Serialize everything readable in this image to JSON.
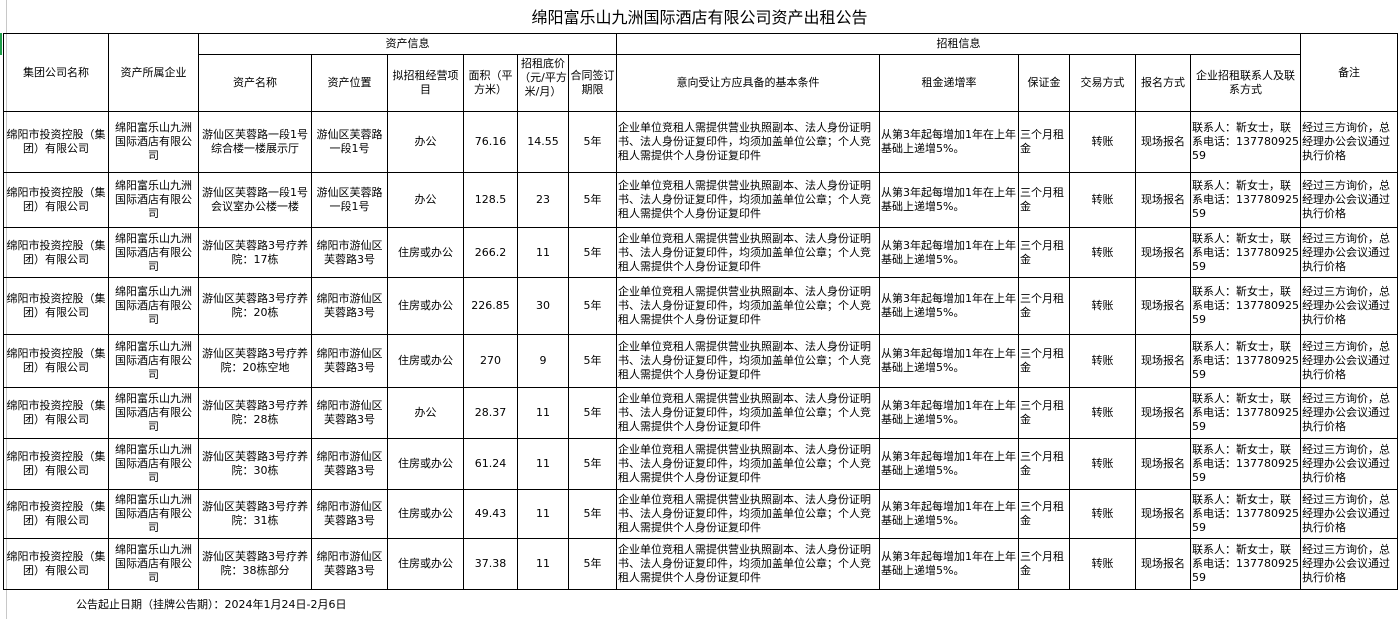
{
  "title": "绵阳富乐山九洲国际酒店有限公司资产出租公告",
  "headers": {
    "group_company": "集团公司名称",
    "owner": "资产所属企业",
    "asset_info": "资产信息",
    "lease_info": "招租信息",
    "remark": "备注",
    "asset_name": "资产名称",
    "asset_location": "资产位置",
    "business": "拟招租经营项目",
    "area": "面积（平方米）",
    "base_price": "招租底价（元/平方米/月）",
    "term": "合同签订期限",
    "conditions": "意向受让方应具备的基本条件",
    "increase": "租金递增率",
    "deposit": "保证金",
    "trade": "交易方式",
    "signup": "报名方式",
    "contact": "企业招租联系人及联系方式"
  },
  "rows": [
    {
      "group": "绵阳市投资控股（集团）有限公司",
      "owner": "绵阳富乐山九洲国际酒店有限公司",
      "name": "游仙区芙蓉路一段1号综合楼一楼展示厅",
      "location": "游仙区芙蓉路一段1号",
      "business": "办公",
      "area": "76.16",
      "price": "14.55",
      "term": "5年",
      "conditions": "企业单位竞租人需提供营业执照副本、法人身份证明书、法人身份证复印件，均须加盖单位公章；个人竞租人需提供个人身份证复印件",
      "increase": "从第3年起每增加1年在上年基础上递增5%。",
      "deposit": "三个月租金",
      "trade": "转账",
      "signup": "现场报名",
      "contact": "联系人：靳女士，联系电话：13778092559",
      "remark": "经过三方询价，总经理办公会议通过执行价格"
    },
    {
      "group": "绵阳市投资控股（集团）有限公司",
      "owner": "绵阳富乐山九洲国际酒店有限公司",
      "name": "游仙区芙蓉路一段1号会议室办公楼一楼",
      "location": "游仙区芙蓉路一段1号",
      "business": "办公",
      "area": "128.5",
      "price": "23",
      "term": "5年",
      "conditions": "企业单位竞租人需提供营业执照副本、法人身份证明书、法人身份证复印件，均须加盖单位公章；个人竞租人需提供个人身份证复印件",
      "increase": "从第3年起每增加1年在上年基础上递增5%。",
      "deposit": "三个月租金",
      "trade": "转账",
      "signup": "现场报名",
      "contact": "联系人：靳女士，联系电话：13778092559",
      "remark": "经过三方询价，总经理办公会议通过执行价格"
    },
    {
      "group": "绵阳市投资控股（集团）有限公司",
      "owner": "绵阳富乐山九洲国际酒店有限公司",
      "name": "游仙区芙蓉路3号疗养院：17栋",
      "location": "绵阳市游仙区芙蓉路3号",
      "business": "住房或办公",
      "area": "266.2",
      "price": "11",
      "term": "5年",
      "conditions": "企业单位竞租人需提供营业执照副本、法人身份证明书、法人身份证复印件，均须加盖单位公章；个人竞租人需提供个人身份证复印件",
      "increase": "从第3年起每增加1年在上年基础上递增5%。",
      "deposit": "三个月租金",
      "trade": "转账",
      "signup": "现场报名",
      "contact": "联系人：靳女士，联系电话：13778092559",
      "remark": "经过三方询价，总经理办公会议通过执行价格"
    },
    {
      "group": "绵阳市投资控股（集团）有限公司",
      "owner": "绵阳富乐山九洲国际酒店有限公司",
      "name": "游仙区芙蓉路3号疗养院：20栋",
      "location": "绵阳市游仙区芙蓉路3号",
      "business": "住房或办公",
      "area": "226.85",
      "price": "30",
      "term": "5年",
      "conditions": "企业单位竞租人需提供营业执照副本、法人身份证明书、法人身份证复印件，均须加盖单位公章；个人竞租人需提供个人身份证复印件",
      "increase": "从第3年起每增加1年在上年基础上递增5%。",
      "deposit": "三个月租金",
      "trade": "转账",
      "signup": "现场报名",
      "contact": "联系人：靳女士，联系电话：13778092559",
      "remark": "经过三方询价，总经理办公会议通过执行价格"
    },
    {
      "group": "绵阳市投资控股（集团）有限公司",
      "owner": "绵阳富乐山九洲国际酒店有限公司",
      "name": "游仙区芙蓉路3号疗养院：20栋空地",
      "location": "绵阳市游仙区芙蓉路3号",
      "business": "住房或办公",
      "area": "270",
      "price": "9",
      "term": "5年",
      "conditions": "企业单位竞租人需提供营业执照副本、法人身份证明书、法人身份证复印件，均须加盖单位公章；个人竞租人需提供个人身份证复印件",
      "increase": "从第3年起每增加1年在上年基础上递增5%。",
      "deposit": "三个月租金",
      "trade": "转账",
      "signup": "现场报名",
      "contact": "联系人：靳女士，联系电话：13778092559",
      "remark": "经过三方询价，总经理办公会议通过执行价格"
    },
    {
      "group": "绵阳市投资控股（集团）有限公司",
      "owner": "绵阳富乐山九洲国际酒店有限公司",
      "name": "游仙区芙蓉路3号疗养院：28栋",
      "location": "绵阳市游仙区芙蓉路3号",
      "business": "办公",
      "area": "28.37",
      "price": "11",
      "term": "5年",
      "conditions": "企业单位竞租人需提供营业执照副本、法人身份证明书、法人身份证复印件，均须加盖单位公章；个人竞租人需提供个人身份证复印件",
      "increase": "从第3年起每增加1年在上年基础上递增5%。",
      "deposit": "三个月租金",
      "trade": "转账",
      "signup": "现场报名",
      "contact": "联系人：靳女士，联系电话：13778092559",
      "remark": "经过三方询价，总经理办公会议通过执行价格"
    },
    {
      "group": "绵阳市投资控股（集团）有限公司",
      "owner": "绵阳富乐山九洲国际酒店有限公司",
      "name": "游仙区芙蓉路3号疗养院：30栋",
      "location": "绵阳市游仙区芙蓉路3号",
      "business": "住房或办公",
      "area": "61.24",
      "price": "11",
      "term": "5年",
      "conditions": "企业单位竞租人需提供营业执照副本、法人身份证明书、法人身份证复印件，均须加盖单位公章；个人竞租人需提供个人身份证复印件",
      "increase": "从第3年起每增加1年在上年基础上递增5%。",
      "deposit": "三个月租金",
      "trade": "转账",
      "signup": "现场报名",
      "contact": "联系人：靳女士，联系电话：13778092559",
      "remark": "经过三方询价，总经理办公会议通过执行价格"
    },
    {
      "group": "绵阳市投资控股（集团）有限公司",
      "owner": "绵阳富乐山九洲国际酒店有限公司",
      "name": "游仙区芙蓉路3号疗养院：31栋",
      "location": "绵阳市游仙区芙蓉路3号",
      "business": "住房或办公",
      "area": "49.43",
      "price": "11",
      "term": "5年",
      "conditions": "企业单位竞租人需提供营业执照副本、法人身份证明书、法人身份证复印件，均须加盖单位公章；个人竞租人需提供个人身份证复印件",
      "increase": "从第3年起每增加1年在上年基础上递增5%。",
      "deposit": "三个月租金",
      "trade": "转账",
      "signup": "现场报名",
      "contact": "联系人：靳女士，联系电话：13778092559",
      "remark": "经过三方询价，总经理办公会议通过执行价格"
    },
    {
      "group": "绵阳市投资控股（集团）有限公司",
      "owner": "绵阳富乐山九洲国际酒店有限公司",
      "name": "游仙区芙蓉路3号疗养院：38栋部分",
      "location": "绵阳市游仙区芙蓉路3号",
      "business": "住房或办公",
      "area": "37.38",
      "price": "11",
      "term": "5年",
      "conditions": "企业单位竞租人需提供营业执照副本、法人身份证明书、法人身份证复印件，均须加盖单位公章；个人竞租人需提供个人身份证复印件",
      "increase": "从第3年起每增加1年在上年基础上递增5%。",
      "deposit": "三个月租金",
      "trade": "转账",
      "signup": "现场报名",
      "contact": "联系人：靳女士，联系电话：13778092559",
      "remark": "经过三方询价，总经理办公会议通过执行价格"
    }
  ],
  "footer": "公告起止日期（挂牌公告期）：2024年1月24日-2月6日"
}
